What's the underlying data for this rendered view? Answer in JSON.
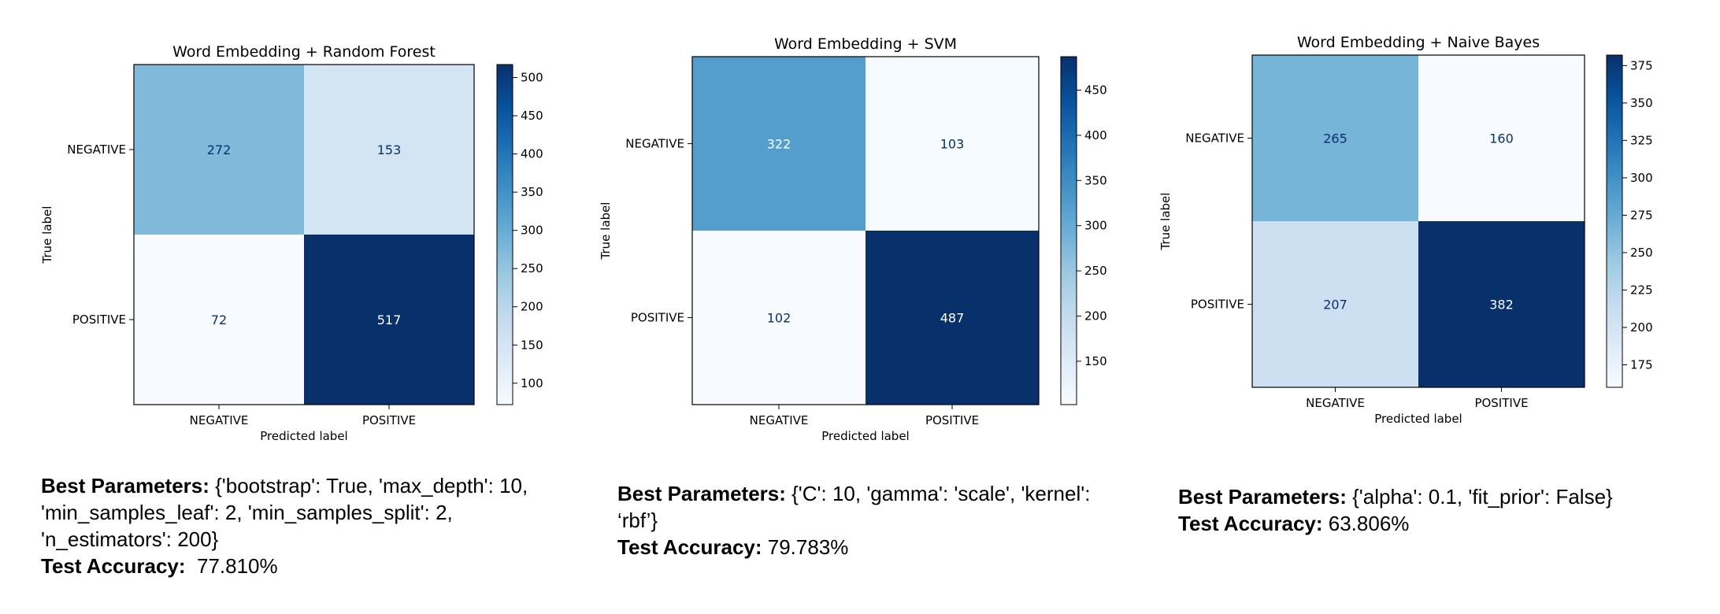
{
  "chart_data": [
    {
      "type": "heatmap",
      "title": "Word Embedding + Random Forest",
      "xlabel": "Predicted label",
      "ylabel": "True label",
      "x_categories": [
        "NEGATIVE",
        "POSITIVE"
      ],
      "y_categories": [
        "NEGATIVE",
        "POSITIVE"
      ],
      "values": [
        [
          272,
          153
        ],
        [
          72,
          517
        ]
      ],
      "colormap": "Blues",
      "colorbar_ticks": [
        100,
        150,
        200,
        250,
        300,
        350,
        400,
        450,
        500
      ],
      "colorbar_range": [
        72,
        517
      ]
    },
    {
      "type": "heatmap",
      "title": "Word Embedding + SVM",
      "xlabel": "Predicted label",
      "ylabel": "True label",
      "x_categories": [
        "NEGATIVE",
        "POSITIVE"
      ],
      "y_categories": [
        "NEGATIVE",
        "POSITIVE"
      ],
      "values": [
        [
          322,
          103
        ],
        [
          102,
          487
        ]
      ],
      "colormap": "Blues",
      "colorbar_ticks": [
        150,
        200,
        250,
        300,
        350,
        400,
        450
      ],
      "colorbar_range": [
        102,
        487
      ]
    },
    {
      "type": "heatmap",
      "title": "Word Embedding + Naive Bayes",
      "xlabel": "Predicted label",
      "ylabel": "True label",
      "x_categories": [
        "NEGATIVE",
        "POSITIVE"
      ],
      "y_categories": [
        "NEGATIVE",
        "POSITIVE"
      ],
      "values": [
        [
          265,
          160
        ],
        [
          207,
          382
        ]
      ],
      "colormap": "Blues",
      "colorbar_ticks": [
        175,
        200,
        225,
        250,
        275,
        300,
        325,
        350,
        375
      ],
      "colorbar_range": [
        160,
        382
      ]
    }
  ],
  "captions": [
    {
      "params_label": "Best Parameters:",
      "params_lines": [
        " {'bootstrap': True, 'max_depth': 10,",
        "'min_samples_leaf': 2, 'min_samples_split': 2,",
        "'n_estimators': 200}"
      ],
      "accuracy_label": "Test Accuracy:",
      "accuracy_value": "  77.810%"
    },
    {
      "params_label": "Best Parameters:",
      "params_lines": [
        " {'C': 10, 'gamma': 'scale', 'kernel':",
        "‘rbf’}"
      ],
      "accuracy_label": "Test Accuracy:",
      "accuracy_value": " 79.783%"
    },
    {
      "params_label": "Best Parameters:",
      "params_lines": [
        " {'alpha': 0.1, 'fit_prior': False}"
      ],
      "accuracy_label": "Test Accuracy:",
      "accuracy_value": " 63.806%"
    }
  ]
}
